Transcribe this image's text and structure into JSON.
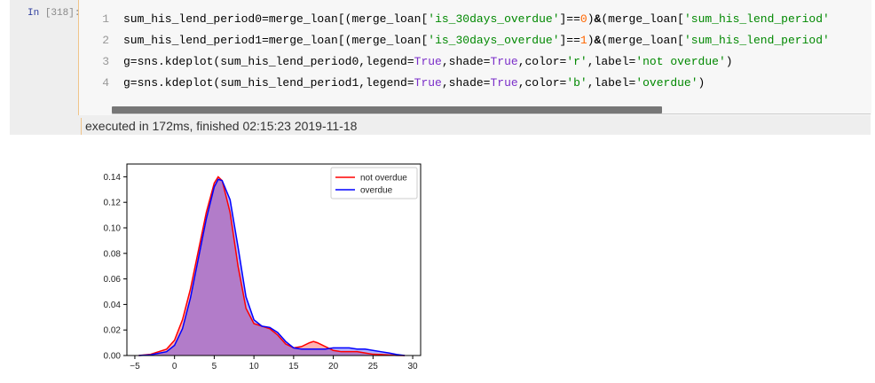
{
  "cell": {
    "prompt_label": "In",
    "prompt_number": "[318]:",
    "line_numbers": [
      "1",
      "2",
      "3",
      "4"
    ],
    "code_lines": [
      [
        {
          "t": "sum_his_lend_period0=merge_loan[(merge_loan[",
          "c": "txt"
        },
        {
          "t": "'is_30days_overdue'",
          "c": "str"
        },
        {
          "t": "]==",
          "c": "txt"
        },
        {
          "t": "0",
          "c": "num"
        },
        {
          "t": ")",
          "c": "txt"
        },
        {
          "t": "&",
          "c": "amp"
        },
        {
          "t": "(merge_loan[",
          "c": "txt"
        },
        {
          "t": "'sum_his_lend_period'",
          "c": "str"
        }
      ],
      [
        {
          "t": "sum_his_lend_period1=merge_loan[(merge_loan[",
          "c": "txt"
        },
        {
          "t": "'is_30days_overdue'",
          "c": "str"
        },
        {
          "t": "]==",
          "c": "txt"
        },
        {
          "t": "1",
          "c": "num"
        },
        {
          "t": ")",
          "c": "txt"
        },
        {
          "t": "&",
          "c": "amp"
        },
        {
          "t": "(merge_loan[",
          "c": "txt"
        },
        {
          "t": "'sum_his_lend_period'",
          "c": "str"
        }
      ],
      [
        {
          "t": "g=sns.kdeplot(sum_his_lend_period0,legend=",
          "c": "txt"
        },
        {
          "t": "True",
          "c": "kw"
        },
        {
          "t": ",shade=",
          "c": "txt"
        },
        {
          "t": "True",
          "c": "kw"
        },
        {
          "t": ",color=",
          "c": "txt"
        },
        {
          "t": "'r'",
          "c": "str"
        },
        {
          "t": ",label=",
          "c": "txt"
        },
        {
          "t": "'not overdue'",
          "c": "str"
        },
        {
          "t": ")",
          "c": "txt"
        }
      ],
      [
        {
          "t": "g=sns.kdeplot(sum_his_lend_period1,legend=",
          "c": "txt"
        },
        {
          "t": "True",
          "c": "kw"
        },
        {
          "t": ",shade=",
          "c": "txt"
        },
        {
          "t": "True",
          "c": "kw"
        },
        {
          "t": ",color=",
          "c": "txt"
        },
        {
          "t": "'b'",
          "c": "str"
        },
        {
          "t": ",label=",
          "c": "txt"
        },
        {
          "t": "'overdue'",
          "c": "str"
        },
        {
          "t": ")",
          "c": "txt"
        }
      ]
    ],
    "execution_info": "executed in 172ms, finished 02:15:23 2019-11-18"
  },
  "chart_data": {
    "type": "area",
    "title": "",
    "xlabel": "",
    "ylabel": "",
    "xlim": [
      -6,
      31
    ],
    "ylim": [
      0,
      0.15
    ],
    "x_ticks": [
      -5,
      0,
      5,
      10,
      15,
      20,
      25,
      30
    ],
    "y_ticks": [
      0.0,
      0.02,
      0.04,
      0.06,
      0.08,
      0.1,
      0.12,
      0.14
    ],
    "legend_position": "top-right",
    "grid": false,
    "series": [
      {
        "name": "not overdue",
        "color": "#ff0000",
        "x": [
          -4.5,
          -3,
          -1,
          0,
          1,
          2,
          3,
          4,
          5,
          5.5,
          6,
          7,
          8,
          9,
          10,
          11,
          12,
          13,
          14,
          15,
          16,
          17,
          17.5,
          18,
          19,
          20,
          21,
          22,
          23,
          24,
          25,
          26,
          27,
          28,
          29
        ],
        "y": [
          0,
          0.001,
          0.005,
          0.012,
          0.028,
          0.052,
          0.082,
          0.112,
          0.135,
          0.14,
          0.137,
          0.112,
          0.07,
          0.037,
          0.025,
          0.023,
          0.021,
          0.016,
          0.009,
          0.006,
          0.007,
          0.01,
          0.011,
          0.01,
          0.007,
          0.004,
          0.003,
          0.003,
          0.003,
          0.002,
          0.001,
          0.0008,
          0.0004,
          0.0001,
          0
        ]
      },
      {
        "name": "overdue",
        "color": "#0000ff",
        "x": [
          -4.5,
          -3,
          -1,
          0,
          1,
          2,
          3,
          4,
          5,
          5.5,
          6,
          7,
          8,
          9,
          10,
          11,
          12,
          13,
          14,
          15,
          16,
          17,
          18,
          19,
          20,
          21,
          22,
          23,
          24,
          25,
          26,
          27,
          28,
          29
        ],
        "y": [
          0,
          0.0005,
          0.003,
          0.008,
          0.021,
          0.045,
          0.076,
          0.107,
          0.132,
          0.138,
          0.137,
          0.122,
          0.085,
          0.046,
          0.028,
          0.023,
          0.022,
          0.018,
          0.011,
          0.006,
          0.005,
          0.005,
          0.005,
          0.005,
          0.006,
          0.006,
          0.006,
          0.005,
          0.005,
          0.004,
          0.003,
          0.002,
          0.0008,
          0
        ]
      }
    ]
  }
}
